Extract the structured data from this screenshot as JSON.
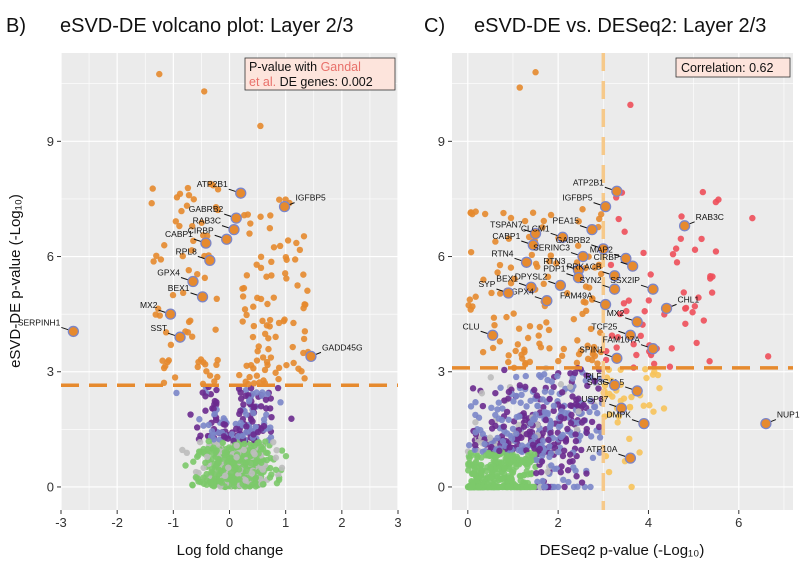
{
  "figure": {
    "panels": [
      "B",
      "C"
    ]
  },
  "chart_data": [
    {
      "panel": "B)",
      "type": "scatter",
      "title": "eSVD-DE volcano plot: Layer 2/3",
      "xlabel": "Log fold change",
      "ylabel": "eSVD-DE p-value (-Log₁₀)",
      "xlim": [
        -3.0,
        3.0
      ],
      "ylim": [
        -0.6,
        11.3
      ],
      "xticks": [
        -3,
        -2,
        -1,
        0,
        1,
        2,
        3
      ],
      "xtick_labels": [
        "-3",
        "-2",
        "-1",
        "0",
        "1",
        "2",
        "3"
      ],
      "yticks": [
        0,
        3,
        6,
        9
      ],
      "ytick_labels": [
        "0",
        "3",
        "6",
        "9"
      ],
      "threshold_y": 2.65,
      "annotation": {
        "line1": "P-value with ",
        "highlight": "Gandal",
        "line2a": "et al.",
        "line2b": " DE genes: 0.002",
        "highlight_color": "#e8706a"
      },
      "colors": {
        "sig": "#e68a2e",
        "outlined": "#7b86c9",
        "purple": "#6a2a8e",
        "green": "#7cc96a",
        "gray": "#bdbdbd",
        "threshold": "#e68a2e"
      },
      "labeled_genes": [
        {
          "label": "SERPINH1",
          "x": -2.78,
          "y": 4.05
        },
        {
          "label": "MX2",
          "x": -1.05,
          "y": 4.5
        },
        {
          "label": "SST",
          "x": -0.88,
          "y": 3.9
        },
        {
          "label": "GPX4",
          "x": -0.65,
          "y": 5.35
        },
        {
          "label": "BEX1",
          "x": -0.48,
          "y": 4.95
        },
        {
          "label": "RPL8",
          "x": -0.35,
          "y": 5.9
        },
        {
          "label": "CABP1",
          "x": -0.42,
          "y": 6.35
        },
        {
          "label": "CIRBP",
          "x": -0.05,
          "y": 6.45
        },
        {
          "label": "RAB3C",
          "x": 0.08,
          "y": 6.7
        },
        {
          "label": "GABRB2",
          "x": 0.12,
          "y": 7.0
        },
        {
          "label": "ATP2B1",
          "x": 0.2,
          "y": 7.65
        },
        {
          "label": "IGFBP5",
          "x": 0.98,
          "y": 7.3
        },
        {
          "label": "GADD45G",
          "x": 1.45,
          "y": 3.4
        }
      ]
    },
    {
      "panel": "C)",
      "type": "scatter",
      "title": "eSVD-DE vs. DESeq2: Layer 2/3",
      "xlabel": "DESeq2 p-value (-Log₁₀)",
      "ylabel": "",
      "xlim": [
        -0.35,
        7.2
      ],
      "ylim": [
        -0.6,
        11.3
      ],
      "xticks": [
        0,
        2,
        4,
        6
      ],
      "xtick_labels": [
        "0",
        "2",
        "4",
        "6"
      ],
      "yticks": [
        0,
        3,
        6,
        9
      ],
      "ytick_labels": [
        "0",
        "3",
        "6",
        "9"
      ],
      "threshold_y": 3.1,
      "threshold_x": 3.0,
      "annotation": {
        "text": "Correlation: 0.62"
      },
      "colors": {
        "orange": "#e68a2e",
        "red": "#ee4f5a",
        "yellow": "#f7c35a",
        "outlined": "#7b86c9",
        "purple": "#6a2a8e",
        "green": "#7cc96a",
        "gray": "#bdbdbd",
        "threshold": "#e68a2e",
        "vthreshold": "#f6c98a"
      },
      "labeled_genes": [
        {
          "label": "IGFBP5",
          "x": 3.05,
          "y": 7.3
        },
        {
          "label": "ATP2B1",
          "x": 3.3,
          "y": 7.7
        },
        {
          "label": "TSPAN7",
          "x": 1.5,
          "y": 6.6
        },
        {
          "label": "CLCM1",
          "x": 2.1,
          "y": 6.5
        },
        {
          "label": "PEA15",
          "x": 2.75,
          "y": 6.7
        },
        {
          "label": "RAB3C",
          "x": 4.8,
          "y": 6.8
        },
        {
          "label": "CABP1",
          "x": 1.45,
          "y": 6.3
        },
        {
          "label": "GABRB2",
          "x": 3.0,
          "y": 6.2
        },
        {
          "label": "SERINC3",
          "x": 2.55,
          "y": 6.0
        },
        {
          "label": "MAP2",
          "x": 3.5,
          "y": 5.95
        },
        {
          "label": "CIRBP",
          "x": 3.65,
          "y": 5.75
        },
        {
          "label": "RTN3",
          "x": 2.45,
          "y": 5.65
        },
        {
          "label": "RTN4",
          "x": 1.3,
          "y": 5.85
        },
        {
          "label": "PDP1",
          "x": 2.45,
          "y": 5.45
        },
        {
          "label": "PRKACB",
          "x": 3.25,
          "y": 5.5
        },
        {
          "label": "DPYSL2",
          "x": 2.05,
          "y": 5.25
        },
        {
          "label": "SSX2IP",
          "x": 4.1,
          "y": 5.15
        },
        {
          "label": "BEX1",
          "x": 1.4,
          "y": 5.2
        },
        {
          "label": "GPX4",
          "x": 1.75,
          "y": 4.85
        },
        {
          "label": "SYN2",
          "x": 3.25,
          "y": 5.15
        },
        {
          "label": "SYP",
          "x": 0.9,
          "y": 5.05
        },
        {
          "label": "FAM49A",
          "x": 3.05,
          "y": 4.75
        },
        {
          "label": "CHL1",
          "x": 4.4,
          "y": 4.65
        },
        {
          "label": "MX2",
          "x": 3.75,
          "y": 4.3
        },
        {
          "label": "TCF25",
          "x": 3.6,
          "y": 3.95
        },
        {
          "label": "CLU",
          "x": 0.55,
          "y": 3.95
        },
        {
          "label": "FAM107A",
          "x": 4.1,
          "y": 3.6
        },
        {
          "label": "SPIN1",
          "x": 3.3,
          "y": 3.35
        },
        {
          "label": "ST3GAL5",
          "x": 3.75,
          "y": 2.5
        },
        {
          "label": "RLF",
          "x": 3.25,
          "y": 2.65
        },
        {
          "label": "USP37",
          "x": 3.4,
          "y": 2.05
        },
        {
          "label": "DMPK",
          "x": 3.9,
          "y": 1.65
        },
        {
          "label": "NUP133",
          "x": 6.6,
          "y": 1.65
        },
        {
          "label": "ATP10A",
          "x": 3.6,
          "y": 0.75
        }
      ]
    }
  ]
}
